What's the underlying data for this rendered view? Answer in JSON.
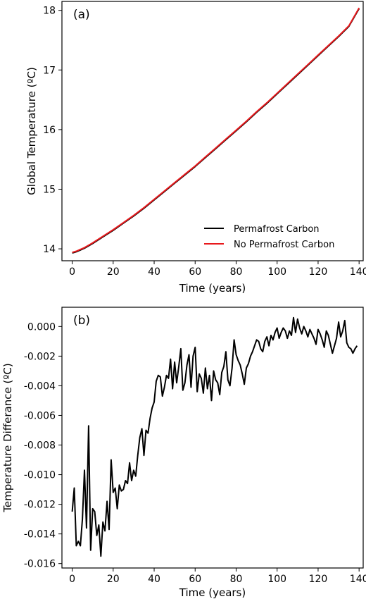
{
  "chart_data": [
    {
      "type": "line",
      "panel_label": "(a)",
      "xlabel": "Time (years)",
      "ylabel": "Global Temperature (ºC)",
      "xlim": [
        -5,
        142
      ],
      "ylim": [
        13.8,
        18.15
      ],
      "xticks": [
        0,
        20,
        40,
        60,
        80,
        100,
        120,
        140
      ],
      "yticks": [
        14,
        15,
        16,
        17,
        18
      ],
      "legend_position": "lower-right",
      "series": [
        {
          "name": "Permafrost Carbon",
          "color": "#000000",
          "x": [
            0,
            2,
            4,
            6,
            8,
            10,
            15,
            20,
            25,
            30,
            35,
            40,
            45,
            50,
            55,
            60,
            65,
            70,
            75,
            80,
            85,
            90,
            95,
            100,
            105,
            110,
            115,
            120,
            125,
            130,
            135,
            140
          ],
          "y": [
            13.93,
            13.95,
            13.98,
            14.01,
            14.05,
            14.09,
            14.2,
            14.31,
            14.43,
            14.55,
            14.68,
            14.82,
            14.96,
            15.1,
            15.24,
            15.38,
            15.53,
            15.68,
            15.83,
            15.98,
            16.13,
            16.29,
            16.44,
            16.6,
            16.76,
            16.92,
            17.08,
            17.24,
            17.4,
            17.56,
            17.73,
            18.03
          ]
        },
        {
          "name": "No Permafrost Carbon",
          "color": "#e8191c",
          "x": [
            0,
            2,
            4,
            6,
            8,
            10,
            15,
            20,
            25,
            30,
            35,
            40,
            45,
            50,
            55,
            60,
            65,
            70,
            75,
            80,
            85,
            90,
            95,
            100,
            105,
            110,
            115,
            120,
            125,
            130,
            135,
            140
          ],
          "y": [
            13.94,
            13.96,
            13.99,
            14.02,
            14.06,
            14.1,
            14.21,
            14.32,
            14.44,
            14.56,
            14.69,
            14.83,
            14.97,
            15.11,
            15.25,
            15.39,
            15.54,
            15.69,
            15.84,
            15.99,
            16.14,
            16.3,
            16.45,
            16.61,
            16.77,
            16.93,
            17.09,
            17.25,
            17.41,
            17.57,
            17.74,
            18.04
          ]
        }
      ]
    },
    {
      "type": "line",
      "panel_label": "(b)",
      "xlabel": "Time (years)",
      "ylabel": "Temperature Differance (ºC)",
      "xlim": [
        -5,
        142
      ],
      "ylim": [
        -0.0163,
        0.0013
      ],
      "xticks": [
        0,
        20,
        40,
        60,
        80,
        100,
        120,
        140
      ],
      "yticks": [
        -0.016,
        -0.014,
        -0.012,
        -0.01,
        -0.008,
        -0.006,
        -0.004,
        -0.002,
        0.0
      ],
      "ytick_labels": [
        "-0.016",
        "-0.014",
        "-0.012",
        "-0.010",
        "-0.008",
        "-0.006",
        "-0.004",
        "-0.002",
        "0.000"
      ],
      "series": [
        {
          "color": "#000000",
          "x": [
            0,
            1,
            2,
            3,
            4,
            5,
            6,
            7,
            8,
            9,
            10,
            11,
            12,
            13,
            14,
            15,
            16,
            17,
            18,
            19,
            20,
            21,
            22,
            23,
            24,
            25,
            26,
            27,
            28,
            29,
            30,
            31,
            32,
            33,
            34,
            35,
            36,
            37,
            38,
            39,
            40,
            41,
            42,
            43,
            44,
            45,
            46,
            47,
            48,
            49,
            50,
            51,
            52,
            53,
            54,
            55,
            56,
            57,
            58,
            59,
            60,
            61,
            62,
            63,
            64,
            65,
            66,
            67,
            68,
            69,
            70,
            71,
            72,
            73,
            74,
            75,
            76,
            77,
            78,
            79,
            80,
            81,
            82,
            83,
            84,
            85,
            86,
            87,
            88,
            89,
            90,
            91,
            92,
            93,
            94,
            95,
            96,
            97,
            98,
            99,
            100,
            101,
            102,
            103,
            104,
            105,
            106,
            107,
            108,
            109,
            110,
            111,
            112,
            113,
            114,
            115,
            116,
            117,
            118,
            119,
            120,
            121,
            122,
            123,
            124,
            125,
            126,
            127,
            128,
            129,
            130,
            131,
            132,
            133,
            134,
            135,
            136,
            137,
            138,
            139
          ],
          "y": [
            -0.0125,
            -0.0109,
            -0.0148,
            -0.0145,
            -0.0148,
            -0.013,
            -0.0097,
            -0.0136,
            -0.0067,
            -0.0151,
            -0.0123,
            -0.0125,
            -0.0141,
            -0.0134,
            -0.0155,
            -0.0132,
            -0.0138,
            -0.0118,
            -0.0137,
            -0.009,
            -0.0112,
            -0.0109,
            -0.0123,
            -0.0107,
            -0.0111,
            -0.011,
            -0.0104,
            -0.0106,
            -0.0092,
            -0.0104,
            -0.0097,
            -0.0101,
            -0.0087,
            -0.0075,
            -0.0069,
            -0.0087,
            -0.007,
            -0.0072,
            -0.0062,
            -0.0055,
            -0.0051,
            -0.0037,
            -0.0033,
            -0.0034,
            -0.0047,
            -0.0041,
            -0.0033,
            -0.0035,
            -0.0022,
            -0.0042,
            -0.0024,
            -0.0038,
            -0.0027,
            -0.0015,
            -0.0043,
            -0.0038,
            -0.0026,
            -0.0019,
            -0.0041,
            -0.002,
            -0.0014,
            -0.0044,
            -0.0032,
            -0.0035,
            -0.0045,
            -0.0028,
            -0.0042,
            -0.0033,
            -0.005,
            -0.003,
            -0.0036,
            -0.0038,
            -0.0046,
            -0.0031,
            -0.0027,
            -0.0017,
            -0.0036,
            -0.004,
            -0.0028,
            -0.0009,
            -0.0019,
            -0.0023,
            -0.0026,
            -0.0032,
            -0.0039,
            -0.0028,
            -0.0025,
            -0.002,
            -0.0017,
            -0.0013,
            -0.0009,
            -0.001,
            -0.0015,
            -0.0017,
            -0.001,
            -0.0007,
            -0.0013,
            -0.0006,
            -0.0009,
            -0.0004,
            -0.0001,
            -0.0008,
            -0.0004,
            -0.0001,
            -0.0003,
            -0.0008,
            -0.0003,
            -0.0006,
            0.0006,
            -0.0004,
            0.0005,
            -0.0001,
            -0.0005,
            0.0,
            -0.0003,
            -0.0007,
            -0.0002,
            -0.0005,
            -0.0008,
            -0.0012,
            -0.0002,
            -0.0005,
            -0.0009,
            -0.0014,
            -0.0003,
            -0.0006,
            -0.0012,
            -0.0018,
            -0.0013,
            -0.0008,
            0.0003,
            -0.0007,
            -0.0003,
            0.0004,
            -0.0011,
            -0.0014,
            -0.0015,
            -0.0018,
            -0.0015,
            -0.0013
          ]
        }
      ]
    }
  ]
}
